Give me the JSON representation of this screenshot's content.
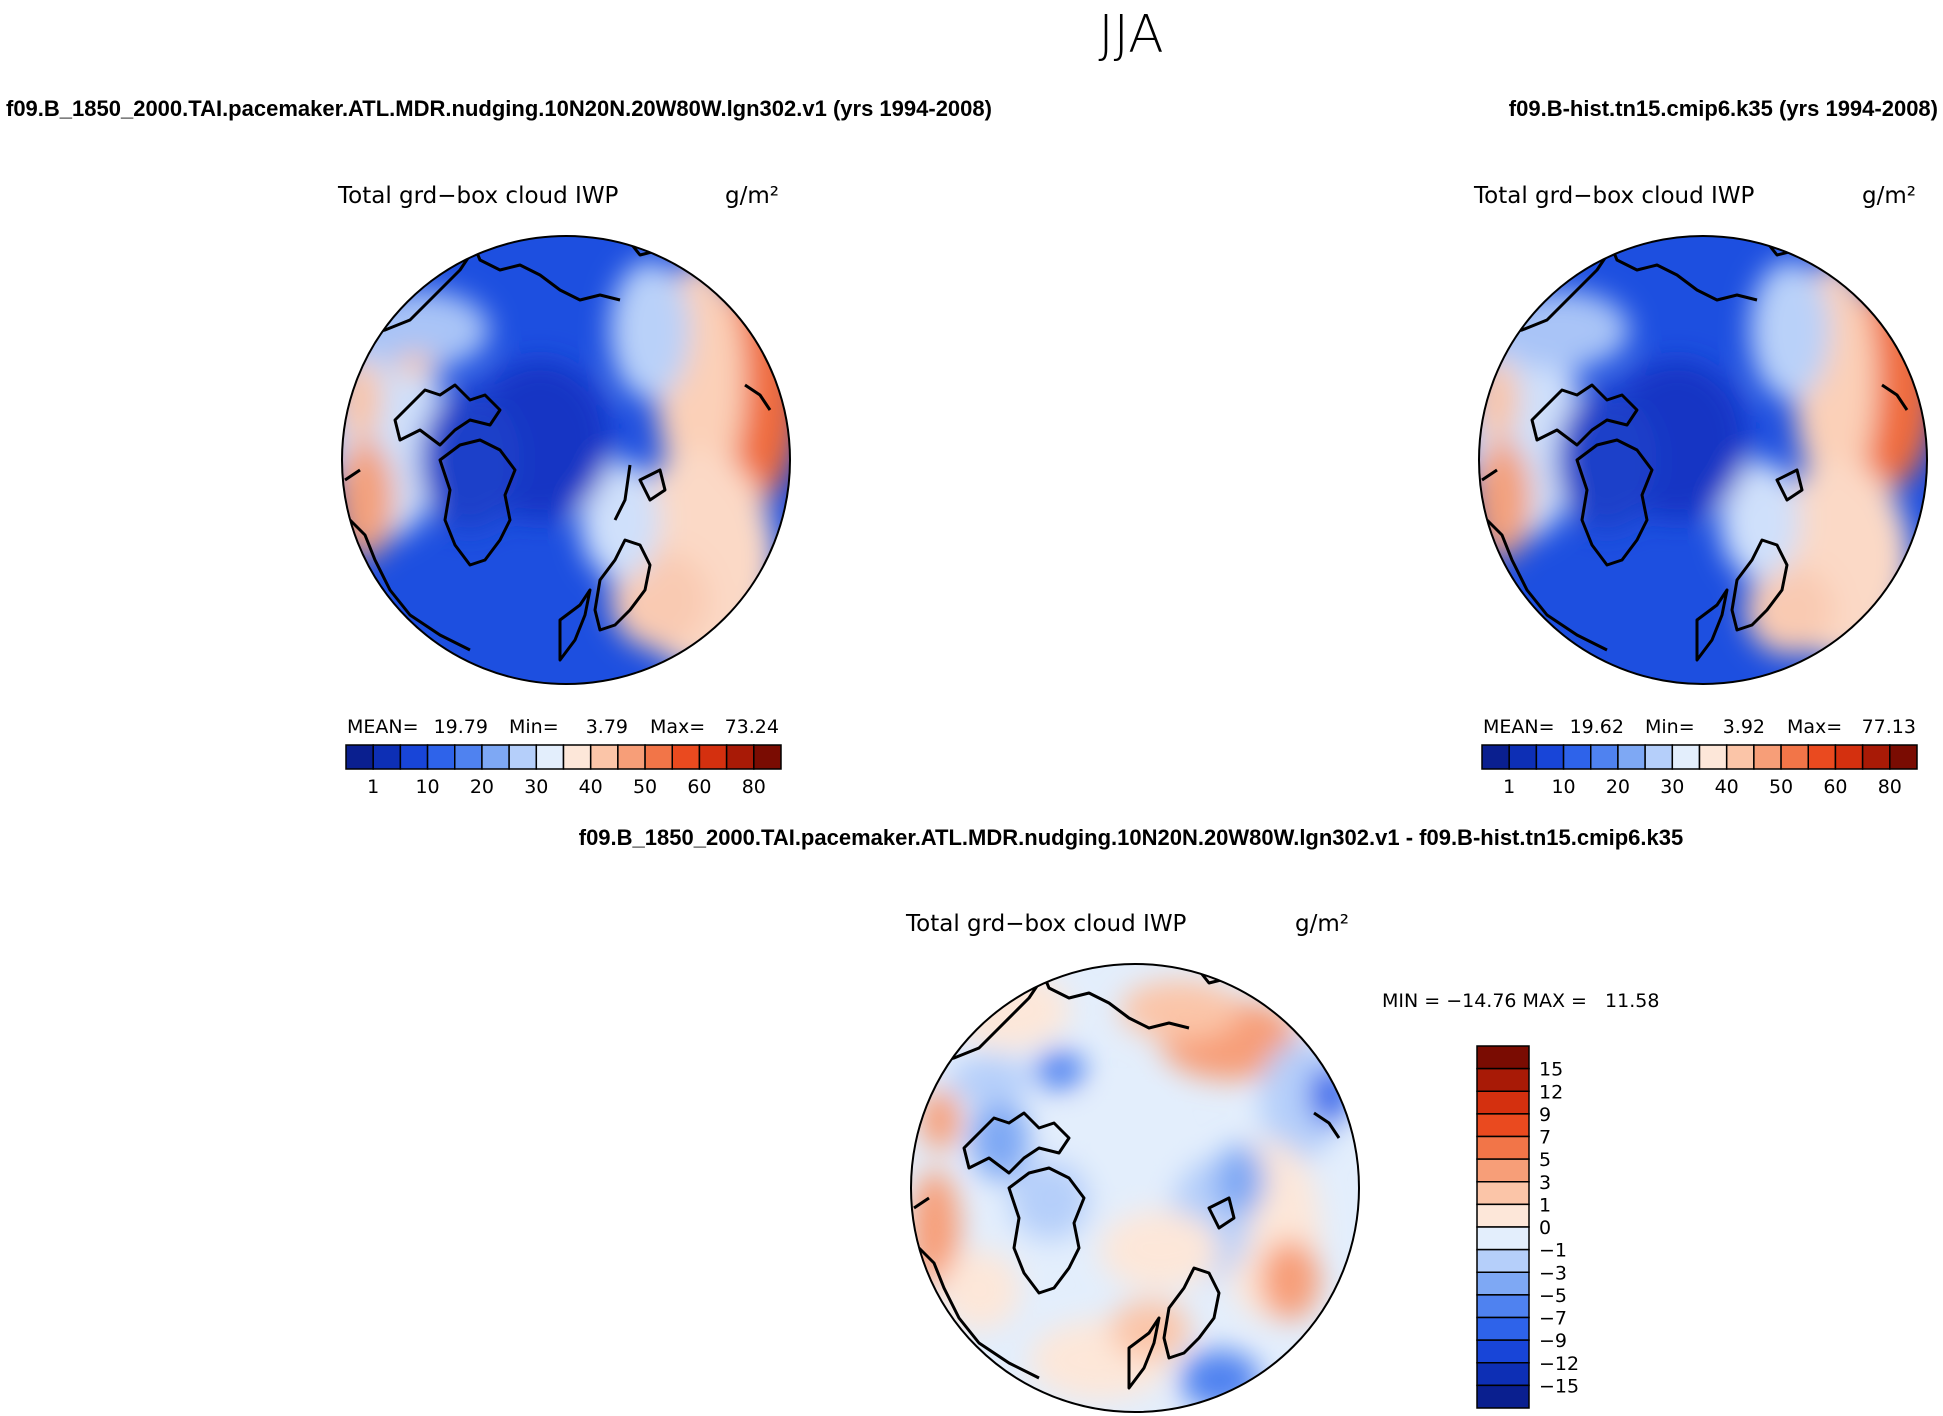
{
  "figure_title": "JJA",
  "colors": {
    "abs_scale": [
      "#0a1f8f",
      "#0d2fb5",
      "#1845d8",
      "#2e63ea",
      "#4f82f0",
      "#7ea8f4",
      "#b5cffa",
      "#e3eefc",
      "#fde7d9",
      "#fbc5a8",
      "#f79e78",
      "#f27548",
      "#ea4a1f",
      "#d4300f",
      "#a81a06",
      "#7a0c02"
    ],
    "diff_scale": [
      "#0a1f8f",
      "#0d2fb5",
      "#1845d8",
      "#2e63ea",
      "#4f82f0",
      "#7ea8f4",
      "#b5cffa",
      "#e3eefc",
      "#fde7d9",
      "#fbc5a8",
      "#f79e78",
      "#f27548",
      "#ea4a1f",
      "#d4300f",
      "#a81a06",
      "#7a0c02"
    ],
    "land_outline": "#000000"
  },
  "chart_data": [
    {
      "type": "heatmap",
      "projection": "north polar stereographic",
      "case_title": "f09.B_1850_2000.TAI.pacemaker.ATL.MDR.nudging.10N20N.20W80W.lgn302.v1 (yrs 1994-2008)",
      "title": "Total grd−box cloud IWP",
      "units": "g/m²",
      "stats": {
        "mean_label": "MEAN=",
        "mean": "19.79",
        "min_label": "Min=",
        "min": "3.79",
        "max_label": "Max=",
        "max": "73.24"
      },
      "colorbar_ticks": [
        "1",
        "10",
        "20",
        "30",
        "40",
        "50",
        "60",
        "80"
      ]
    },
    {
      "type": "heatmap",
      "projection": "north polar stereographic",
      "case_title": "f09.B-hist.tn15.cmip6.k35 (yrs 1994-2008)",
      "title": "Total grd−box cloud IWP",
      "units": "g/m²",
      "stats": {
        "mean_label": "MEAN=",
        "mean": "19.62",
        "min_label": "Min=",
        "min": "3.92",
        "max_label": "Max=",
        "max": "77.13"
      },
      "colorbar_ticks": [
        "1",
        "10",
        "20",
        "30",
        "40",
        "50",
        "60",
        "80"
      ]
    },
    {
      "type": "heatmap",
      "projection": "north polar stereographic",
      "case_title": "f09.B_1850_2000.TAI.pacemaker.ATL.MDR.nudging.10N20N.20W80W.lgn302.v1 - f09.B-hist.tn15.cmip6.k35",
      "title": "Total grd−box cloud IWP",
      "units": "g/m²",
      "stats": {
        "minmax": "MIN = −14.76 MAX =   11.58"
      },
      "colorbar_ticks": [
        "15",
        "12",
        "9",
        "7",
        "5",
        "3",
        "1",
        "0",
        "−1",
        "−3",
        "−5",
        "−7",
        "−9",
        "−12",
        "−15"
      ]
    }
  ]
}
